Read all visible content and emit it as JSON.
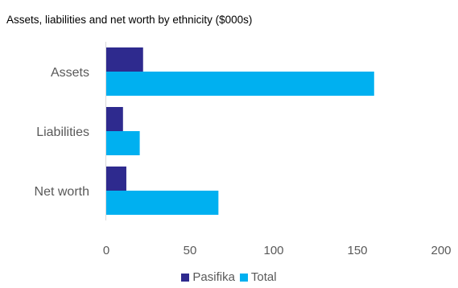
{
  "chart_data": {
    "type": "bar",
    "orientation": "horizontal",
    "title": "Assets, liabilities and net worth by ethnicity ($000s)",
    "categories": [
      "Assets",
      "Liabilities",
      "Net worth"
    ],
    "series": [
      {
        "name": "Pasifika",
        "values": [
          22,
          10,
          12
        ],
        "color": "#2E2A8E"
      },
      {
        "name": "Total",
        "values": [
          160,
          20,
          67
        ],
        "color": "#00B0F0"
      }
    ],
    "xlim": [
      0,
      200
    ],
    "xticks": [
      0,
      50,
      100,
      150,
      200
    ],
    "grid": false,
    "legend_position": "bottom"
  }
}
